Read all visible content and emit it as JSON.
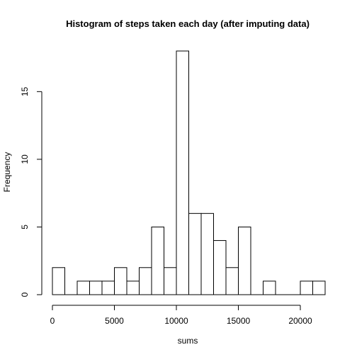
{
  "chart_data": {
    "type": "bar",
    "title": "Histogram of steps taken each day (after imputing data)",
    "xlabel": "sums",
    "ylabel": "Frequency",
    "bin_width": 1000,
    "bins": [
      {
        "start": 0,
        "end": 1000,
        "count": 2
      },
      {
        "start": 1000,
        "end": 2000,
        "count": 0
      },
      {
        "start": 2000,
        "end": 3000,
        "count": 1
      },
      {
        "start": 3000,
        "end": 4000,
        "count": 1
      },
      {
        "start": 4000,
        "end": 5000,
        "count": 1
      },
      {
        "start": 5000,
        "end": 6000,
        "count": 2
      },
      {
        "start": 6000,
        "end": 7000,
        "count": 1
      },
      {
        "start": 7000,
        "end": 8000,
        "count": 2
      },
      {
        "start": 8000,
        "end": 9000,
        "count": 5
      },
      {
        "start": 9000,
        "end": 10000,
        "count": 2
      },
      {
        "start": 10000,
        "end": 11000,
        "count": 18
      },
      {
        "start": 11000,
        "end": 12000,
        "count": 6
      },
      {
        "start": 12000,
        "end": 13000,
        "count": 6
      },
      {
        "start": 13000,
        "end": 14000,
        "count": 4
      },
      {
        "start": 14000,
        "end": 15000,
        "count": 2
      },
      {
        "start": 15000,
        "end": 16000,
        "count": 5
      },
      {
        "start": 16000,
        "end": 17000,
        "count": 0
      },
      {
        "start": 17000,
        "end": 18000,
        "count": 1
      },
      {
        "start": 18000,
        "end": 19000,
        "count": 0
      },
      {
        "start": 19000,
        "end": 20000,
        "count": 0
      },
      {
        "start": 20000,
        "end": 21000,
        "count": 1
      },
      {
        "start": 21000,
        "end": 22000,
        "count": 1
      }
    ],
    "xlim": [
      0,
      22000
    ],
    "ylim": [
      0,
      18
    ],
    "x_ticks": [
      0,
      5000,
      10000,
      15000,
      20000
    ],
    "x_tick_labels": [
      "0",
      "5000",
      "10000",
      "15000",
      "20000"
    ],
    "y_ticks": [
      0,
      5,
      10,
      15
    ],
    "y_tick_labels": [
      "0",
      "5",
      "10",
      "15"
    ],
    "grid": false,
    "legend": "none",
    "colors": {
      "bar_fill": "#ffffff",
      "bar_stroke": "#000000",
      "background": "#ffffff"
    }
  }
}
